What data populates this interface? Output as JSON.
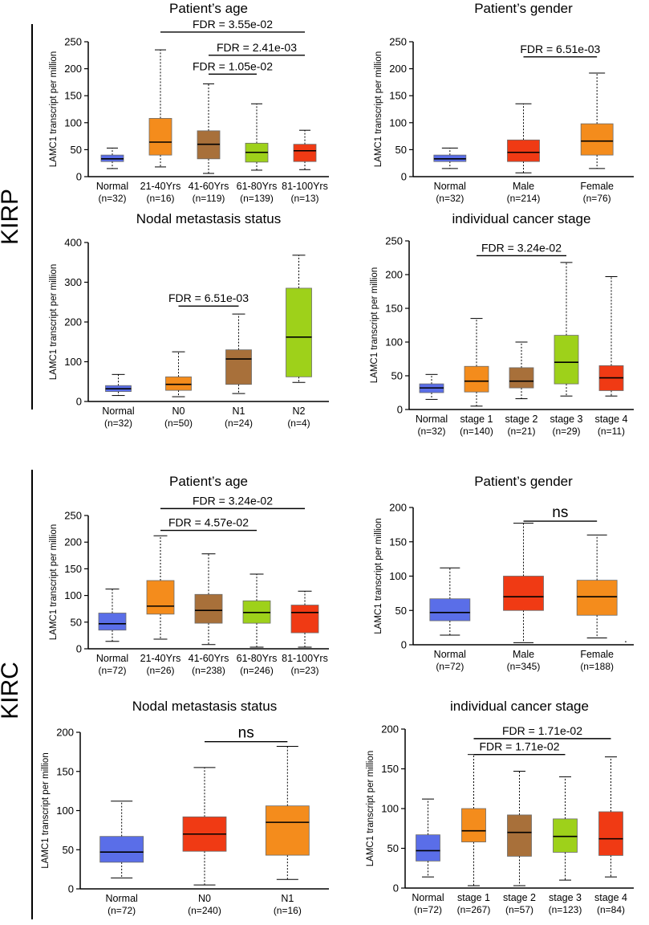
{
  "groups": {
    "kirp": "KIRP",
    "kirc": "KIRC"
  },
  "colors": {
    "normal": "#5A6EE8",
    "orange": "#F48C1C",
    "brown": "#A8703A",
    "green": "#9ED11A",
    "red": "#F03A14"
  },
  "chart_data": [
    {
      "type": "boxplot",
      "group": "KIRP",
      "title": "Patient’s age",
      "ylabel": "LAMC1 transcript per million",
      "ylim": [
        0,
        250
      ],
      "yticks": [
        "0",
        "50",
        "100",
        "150",
        "200",
        "250"
      ],
      "categories": [
        "Normal",
        "21-40Yrs",
        "41-60Yrs",
        "61-80Yrs",
        "81-100Yrs"
      ],
      "counts": [
        "(n=32)",
        "(n=16)",
        "(n=119)",
        "(n=139)",
        "(n=13)"
      ],
      "colors": [
        "#5A6EE8",
        "#F48C1C",
        "#A8703A",
        "#9ED11A",
        "#F03A14"
      ],
      "boxes": [
        {
          "min": 15,
          "q1": 28,
          "median": 33,
          "q3": 40,
          "max": 53
        },
        {
          "min": 18,
          "q1": 40,
          "median": 64,
          "q3": 108,
          "max": 235
        },
        {
          "min": 6,
          "q1": 33,
          "median": 60,
          "q3": 85,
          "max": 172
        },
        {
          "min": 12,
          "q1": 27,
          "median": 45,
          "q3": 62,
          "max": 135
        },
        {
          "min": 13,
          "q1": 28,
          "median": 48,
          "q3": 60,
          "max": 86
        }
      ],
      "annotations": [
        {
          "label": "FDR = 3.55e-02",
          "from": 1,
          "to": 4,
          "y": 268
        },
        {
          "label": "FDR = 2.41e-03",
          "from": 2,
          "to": 4,
          "y": 225
        },
        {
          "label": "FDR = 1.05e-02",
          "from": 2,
          "to": 3,
          "y": 190
        }
      ]
    },
    {
      "type": "boxplot",
      "group": "KIRP",
      "title": "Patient’s gender",
      "ylabel": "LAMC1 transcript per million",
      "ylim": [
        0,
        250
      ],
      "yticks": [
        "0",
        "50",
        "100",
        "150",
        "200",
        "250"
      ],
      "categories": [
        "Normal",
        "Male",
        "Female"
      ],
      "counts": [
        "(n=32)",
        "(n=214)",
        "(n=76)"
      ],
      "colors": [
        "#5A6EE8",
        "#F03A14",
        "#F48C1C"
      ],
      "boxes": [
        {
          "min": 15,
          "q1": 28,
          "median": 33,
          "q3": 40,
          "max": 53
        },
        {
          "min": 7,
          "q1": 28,
          "median": 45,
          "q3": 68,
          "max": 135
        },
        {
          "min": 15,
          "q1": 40,
          "median": 66,
          "q3": 98,
          "max": 192
        }
      ],
      "annotations": [
        {
          "label": "FDR = 6.51e-03",
          "from": 1,
          "to": 2,
          "y": 222
        }
      ]
    },
    {
      "type": "boxplot",
      "group": "KIRP",
      "title": "Nodal metastasis status",
      "ylabel": "LAMC1 transcript per million",
      "ylim": [
        0,
        400
      ],
      "yticks": [
        "0",
        "100",
        "200",
        "300",
        "400"
      ],
      "categories": [
        "Normal",
        "N0",
        "N1",
        "N2"
      ],
      "counts": [
        "(n=32)",
        "(n=50)",
        "(n=24)",
        "(n=4)"
      ],
      "colors": [
        "#5A6EE8",
        "#F48C1C",
        "#A8703A",
        "#9ED11A"
      ],
      "boxes": [
        {
          "min": 15,
          "q1": 25,
          "median": 32,
          "q3": 40,
          "max": 68
        },
        {
          "min": 12,
          "q1": 28,
          "median": 43,
          "q3": 62,
          "max": 125
        },
        {
          "min": 20,
          "q1": 43,
          "median": 107,
          "q3": 130,
          "max": 220
        },
        {
          "min": 48,
          "q1": 62,
          "median": 162,
          "q3": 285,
          "max": 368
        }
      ],
      "annotations": [
        {
          "label": "FDR = 6.51e-03",
          "from": 1,
          "to": 2,
          "y": 240
        }
      ]
    },
    {
      "type": "boxplot",
      "group": "KIRP",
      "title": "individual cancer stage",
      "ylabel": "LAMC1 transcript per million",
      "ylim": [
        0,
        250
      ],
      "yticks": [
        "0",
        "50",
        "100",
        "150",
        "200",
        "250"
      ],
      "categories": [
        "Normal",
        "stage 1",
        "stage 2",
        "stage 3",
        "stage 4"
      ],
      "counts": [
        "(n=32)",
        "(n=140)",
        "(n=21)",
        "(n=29)",
        "(n=11)"
      ],
      "colors": [
        "#5A6EE8",
        "#F48C1C",
        "#A8703A",
        "#9ED11A",
        "#F03A14"
      ],
      "boxes": [
        {
          "min": 15,
          "q1": 25,
          "median": 32,
          "q3": 38,
          "max": 52
        },
        {
          "min": 5,
          "q1": 26,
          "median": 42,
          "q3": 64,
          "max": 135
        },
        {
          "min": 16,
          "q1": 32,
          "median": 42,
          "q3": 62,
          "max": 100
        },
        {
          "min": 20,
          "q1": 38,
          "median": 70,
          "q3": 110,
          "max": 218
        },
        {
          "min": 20,
          "q1": 28,
          "median": 47,
          "q3": 65,
          "max": 197
        }
      ],
      "annotations": [
        {
          "label": "FDR = 3.24e-02",
          "from": 1,
          "to": 3,
          "y": 228
        }
      ]
    },
    {
      "type": "boxplot",
      "group": "KIRC",
      "title": "Patient’s age",
      "ylabel": "LAMC1 transcript per million",
      "ylim": [
        0,
        250
      ],
      "yticks": [
        "0",
        "50",
        "100",
        "150",
        "200",
        "250"
      ],
      "categories": [
        "Normal",
        "21-40Yrs",
        "41-60Yrs",
        "61-80Yrs",
        "81-100Yrs"
      ],
      "counts": [
        "(n=72)",
        "(n=26)",
        "(n=238)",
        "(n=246)",
        "(n=23)"
      ],
      "colors": [
        "#5A6EE8",
        "#F48C1C",
        "#A8703A",
        "#9ED11A",
        "#F03A14"
      ],
      "boxes": [
        {
          "min": 14,
          "q1": 35,
          "median": 47,
          "q3": 67,
          "max": 112
        },
        {
          "min": 18,
          "q1": 65,
          "median": 80,
          "q3": 128,
          "max": 212
        },
        {
          "min": 8,
          "q1": 48,
          "median": 72,
          "q3": 102,
          "max": 178
        },
        {
          "min": 3,
          "q1": 48,
          "median": 68,
          "q3": 90,
          "max": 140
        },
        {
          "min": 3,
          "q1": 30,
          "median": 68,
          "q3": 82,
          "max": 108
        }
      ],
      "annotations": [
        {
          "label": "FDR = 3.24e-02",
          "from": 1,
          "to": 4,
          "y": 263
        },
        {
          "label": "FDR = 4.57e-02",
          "from": 1,
          "to": 3,
          "y": 222
        }
      ]
    },
    {
      "type": "boxplot",
      "group": "KIRC",
      "title": "Patient’s gender",
      "ylabel": "LAMC1 transcript per million",
      "ylim": [
        0,
        200
      ],
      "yticks": [
        "0",
        "50",
        "100",
        "150",
        "200"
      ],
      "categories": [
        "Normal",
        "Male",
        "Female"
      ],
      "counts": [
        "(n=72)",
        "(n=345)",
        "(n=188)"
      ],
      "colors": [
        "#5A6EE8",
        "#F03A14",
        "#F48C1C"
      ],
      "boxes": [
        {
          "min": 14,
          "q1": 35,
          "median": 47,
          "q3": 67,
          "max": 112
        },
        {
          "min": 3,
          "q1": 50,
          "median": 70,
          "q3": 100,
          "max": 177
        },
        {
          "min": 10,
          "q1": 43,
          "median": 70,
          "q3": 94,
          "max": 160
        }
      ],
      "annotations": [
        {
          "label": "ns",
          "from": 1,
          "to": 2,
          "y": 180
        }
      ]
    },
    {
      "type": "boxplot",
      "group": "KIRC",
      "title": "Nodal metastasis status",
      "ylabel": "LAMC1 transcript per million",
      "ylim": [
        0,
        200
      ],
      "yticks": [
        "0",
        "50",
        "100",
        "150",
        "200"
      ],
      "categories": [
        "Normal",
        "N0",
        "N1"
      ],
      "counts": [
        "(n=72)",
        "(n=240)",
        "(n=16)"
      ],
      "colors": [
        "#5A6EE8",
        "#F03A14",
        "#F48C1C"
      ],
      "boxes": [
        {
          "min": 14,
          "q1": 34,
          "median": 47,
          "q3": 67,
          "max": 112
        },
        {
          "min": 5,
          "q1": 48,
          "median": 70,
          "q3": 92,
          "max": 155
        },
        {
          "min": 12,
          "q1": 43,
          "median": 85,
          "q3": 106,
          "max": 182
        }
      ],
      "annotations": [
        {
          "label": "ns",
          "from": 1,
          "to": 2,
          "y": 188
        }
      ]
    },
    {
      "type": "boxplot",
      "group": "KIRC",
      "title": "individual cancer stage",
      "ylabel": "LAMC1 transcript per million",
      "ylim": [
        0,
        200
      ],
      "yticks": [
        "0",
        "50",
        "100",
        "150",
        "200"
      ],
      "categories": [
        "Normal",
        "stage 1",
        "stage 2",
        "stage 3",
        "stage 4"
      ],
      "counts": [
        "(n=72)",
        "(n=267)",
        "(n=57)",
        "(n=123)",
        "(n=84)"
      ],
      "colors": [
        "#5A6EE8",
        "#F48C1C",
        "#A8703A",
        "#9ED11A",
        "#F03A14"
      ],
      "boxes": [
        {
          "min": 14,
          "q1": 34,
          "median": 47,
          "q3": 67,
          "max": 112
        },
        {
          "min": 3,
          "q1": 58,
          "median": 72,
          "q3": 100,
          "max": 168
        },
        {
          "min": 3,
          "q1": 40,
          "median": 70,
          "q3": 92,
          "max": 147
        },
        {
          "min": 10,
          "q1": 45,
          "median": 65,
          "q3": 87,
          "max": 140
        },
        {
          "min": 14,
          "q1": 41,
          "median": 62,
          "q3": 96,
          "max": 165
        }
      ],
      "annotations": [
        {
          "label": "FDR = 1.71e-02",
          "from": 1,
          "to": 4,
          "y": 188
        },
        {
          "label": "FDR = 1.71e-02",
          "from": 1,
          "to": 3,
          "y": 168
        }
      ]
    }
  ]
}
